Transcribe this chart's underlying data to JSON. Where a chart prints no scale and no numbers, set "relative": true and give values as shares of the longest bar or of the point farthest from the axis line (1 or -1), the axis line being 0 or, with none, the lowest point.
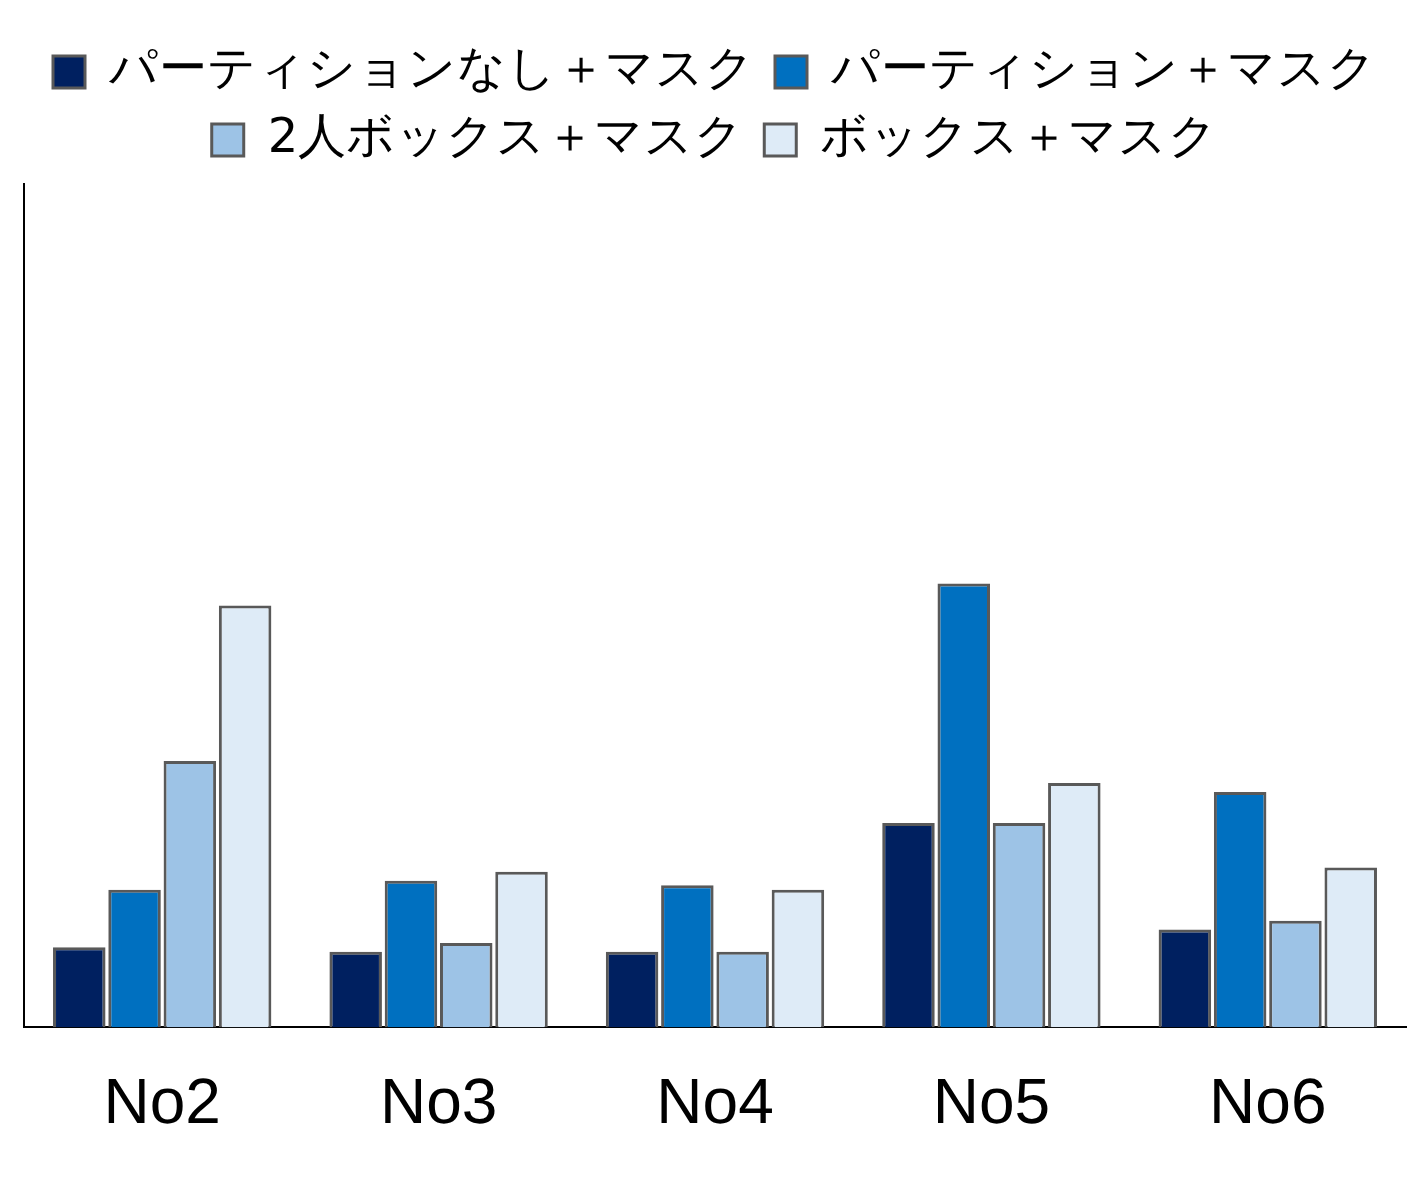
{
  "chart_data": {
    "type": "bar",
    "relative": true,
    "categories": [
      "No2",
      "No3",
      "No4",
      "No5",
      "No6"
    ],
    "series": [
      {
        "name": "パーティションなし＋マスク",
        "color": "#002060",
        "values": [
          0.18,
          0.17,
          0.17,
          0.46,
          0.22
        ]
      },
      {
        "name": "パーティション＋マスク",
        "color": "#0070c0",
        "values": [
          0.31,
          0.33,
          0.32,
          1,
          0.53
        ]
      },
      {
        "name": "2人ボックス＋マスク",
        "color": "#9dc3e6",
        "values": [
          0.6,
          0.19,
          0.17,
          0.46,
          0.24
        ]
      },
      {
        "name": "ボックス＋マスク",
        "color": "#deebf7",
        "values": [
          0.95,
          0.35,
          0.31,
          0.55,
          0.36
        ]
      }
    ],
    "legend": "top"
  }
}
